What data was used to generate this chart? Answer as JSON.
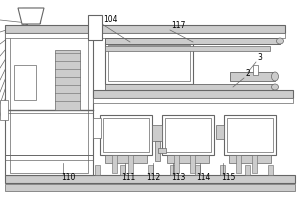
{
  "line_color": "#666666",
  "gray_fill": "#bbbbbb",
  "light_gray": "#cccccc",
  "white": "#ffffff",
  "dark_line": "#444444"
}
